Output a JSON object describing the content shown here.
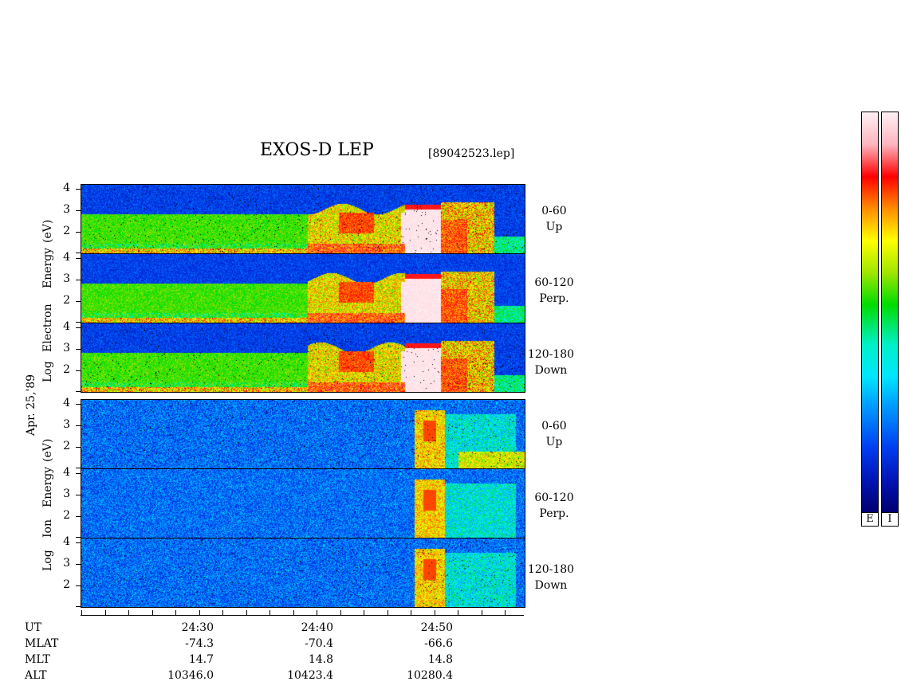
{
  "title": "EXOS-D LEP",
  "file": "[89042523.lep]",
  "colors": {
    "axis": "#000000"
  },
  "chart_data": {
    "type": "heatmap",
    "date_label": "Apr. 25,'89",
    "groups": [
      {
        "name": "Log Electron Energy (eV)",
        "label_parts": [
          "Log",
          "Electron",
          "Energy",
          "(eV)"
        ],
        "panels": [
          {
            "channel": "0-60",
            "direction": "Up"
          },
          {
            "channel": "60-120",
            "direction": "Perp."
          },
          {
            "channel": "120-180",
            "direction": "Down"
          }
        ]
      },
      {
        "name": "Log Ion Energy (eV)",
        "label_parts": [
          "Log",
          "Ion",
          "Energy",
          "(eV)"
        ],
        "panels": [
          {
            "channel": "0-60",
            "direction": "Up"
          },
          {
            "channel": "60-120",
            "direction": "Perp."
          },
          {
            "channel": "120-180",
            "direction": "Down"
          }
        ]
      }
    ],
    "yticks": [
      "4",
      "3",
      "2"
    ],
    "ylim": [
      1,
      4.2
    ],
    "x_rows": [
      {
        "name": "UT",
        "values": [
          "24:30",
          "24:40",
          "24:50"
        ]
      },
      {
        "name": "MLAT",
        "values": [
          "-74.3",
          "-70.4",
          "-66.6"
        ]
      },
      {
        "name": "MLT",
        "values": [
          "14.7",
          "14.8",
          "14.8"
        ]
      },
      {
        "name": "ALT",
        "values": [
          "10346.0",
          "10423.4",
          "10280.4"
        ]
      }
    ],
    "colorbars": [
      "E",
      "I"
    ]
  }
}
